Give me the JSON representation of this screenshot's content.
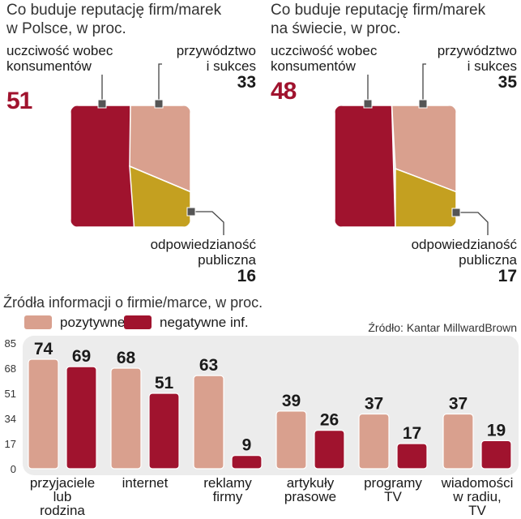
{
  "pies": [
    {
      "title_line1": "Co buduje reputację firm/marek",
      "title_line2": "w Polsce, w proc.",
      "labels": {
        "honesty_line1": "uczciwość wobec",
        "honesty_line2": "konsumentów",
        "leadership_line1": "przywództwo",
        "leadership_line2": "i sukces",
        "responsibility_line1": "odpowiedzianość",
        "responsibility_line2": "publiczna"
      },
      "values": {
        "honesty": "51",
        "leadership": "33",
        "responsibility": "16"
      }
    },
    {
      "title_line1": "Co buduje reputację firm/marek",
      "title_line2": "na świecie, w proc.",
      "labels": {
        "honesty_line1": "uczciwość wobec",
        "honesty_line2": "konsumentów",
        "leadership_line1": "przywództwo",
        "leadership_line2": "i sukces",
        "responsibility_line1": "odpowiedzianość",
        "responsibility_line2": "publiczna"
      },
      "values": {
        "honesty": "48",
        "leadership": "35",
        "responsibility": "17"
      }
    }
  ],
  "bars": {
    "title": "Źródła informacji o firmie/marce, w proc.",
    "source": "Źródło: Kantar MillwardBrown"
  },
  "colors": {
    "honesty": "#a0132e",
    "leadership": "#d9a08e",
    "responsibility": "#c4a020",
    "positive": "#d9a08e",
    "negative": "#a0132e",
    "panel": "#ececec"
  },
  "chart_data": [
    {
      "type": "area",
      "title": "Co buduje reputację firm/marek w Polsce, w proc.",
      "categories": [
        "uczciwość wobec konsumentów",
        "przywództwo i sukces",
        "odpowiedzianość publiczna"
      ],
      "values": [
        51,
        33,
        16
      ]
    },
    {
      "type": "area",
      "title": "Co buduje reputację firm/marek na świecie, w proc.",
      "categories": [
        "uczciwość wobec konsumentów",
        "przywództwo i sukces",
        "odpowiedzianość publiczna"
      ],
      "values": [
        48,
        35,
        17
      ]
    },
    {
      "type": "bar",
      "title": "Źródła informacji o firmie/marce, w proc.",
      "categories": [
        "przyjaciele lub rodzina",
        "internet",
        "reklamy firmy",
        "artykuły prasowe",
        "programy TV",
        "wiadomości w radiu, TV"
      ],
      "category_lines": [
        [
          "przyjaciele",
          "lub",
          "rodzina"
        ],
        [
          "internet"
        ],
        [
          "reklamy",
          "firmy"
        ],
        [
          "artykuły",
          "prasowe"
        ],
        [
          "programy",
          "TV"
        ],
        [
          "wiadomości",
          "w radiu,",
          "TV"
        ]
      ],
      "series": [
        {
          "name": "pozytywne inf.",
          "values": [
            74,
            68,
            63,
            39,
            37,
            37
          ]
        },
        {
          "name": "negatywne inf.",
          "values": [
            69,
            51,
            9,
            26,
            17,
            19
          ]
        }
      ],
      "yticks": [
        "0",
        "17",
        "34",
        "51",
        "68",
        "85"
      ],
      "ylim": [
        0,
        85
      ],
      "legend": "top-left"
    }
  ]
}
